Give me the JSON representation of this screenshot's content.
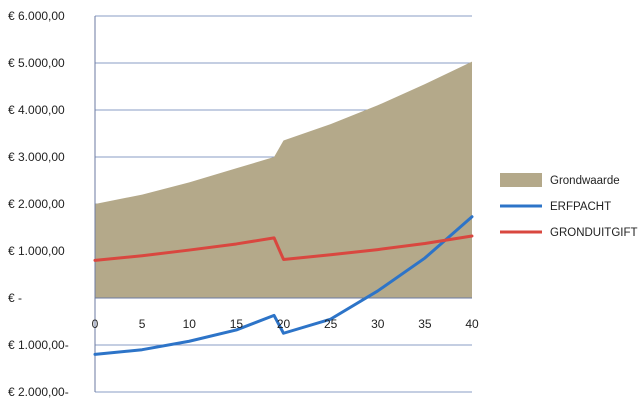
{
  "chart_data": {
    "type": "area",
    "title": "",
    "xlabel": "",
    "ylabel": "",
    "xlim": [
      0,
      40
    ],
    "ylim": [
      -2000,
      6000
    ],
    "x_ticks": [
      0,
      5,
      10,
      15,
      20,
      25,
      30,
      35,
      40
    ],
    "x_tick_labels": [
      "0",
      "5",
      "10",
      "15",
      "20",
      "25",
      "30",
      "35",
      "40"
    ],
    "y_ticks": [
      6000,
      5000,
      4000,
      3000,
      2000,
      1000,
      0,
      -1000,
      -2000
    ],
    "y_tick_labels": [
      "€ 6.000,00",
      "€ 5.000,00",
      "€ 4.000,00",
      "€ 3.000,00",
      "€ 2.000,00",
      "€ 1.000,00",
      "€ -",
      "€ 1.000,00-",
      "€ 2.000,00-"
    ],
    "grid": {
      "horizontal": true,
      "vertical": false
    },
    "legend_position": "right",
    "series": [
      {
        "name": "Grondwaarde",
        "kind": "area",
        "color": "#b4a98a",
        "x": [
          0,
          5,
          10,
          15,
          19,
          20,
          25,
          30,
          35,
          40
        ],
        "values": [
          2000,
          2200,
          2460,
          2760,
          3000,
          3350,
          3700,
          4100,
          4550,
          5030
        ]
      },
      {
        "name": "ERFPACHT",
        "kind": "line",
        "color": "#2d74c8",
        "x": [
          0,
          5,
          10,
          15,
          19,
          20,
          25,
          30,
          35,
          40
        ],
        "values": [
          -1200,
          -1100,
          -920,
          -680,
          -370,
          -750,
          -450,
          150,
          850,
          1730
        ]
      },
      {
        "name": "GRONDUITGIFTE",
        "kind": "line",
        "color": "#d9473f",
        "x": [
          0,
          5,
          10,
          15,
          19,
          20,
          25,
          30,
          35,
          40
        ],
        "values": [
          800,
          900,
          1020,
          1150,
          1280,
          820,
          920,
          1030,
          1160,
          1320
        ]
      }
    ]
  }
}
